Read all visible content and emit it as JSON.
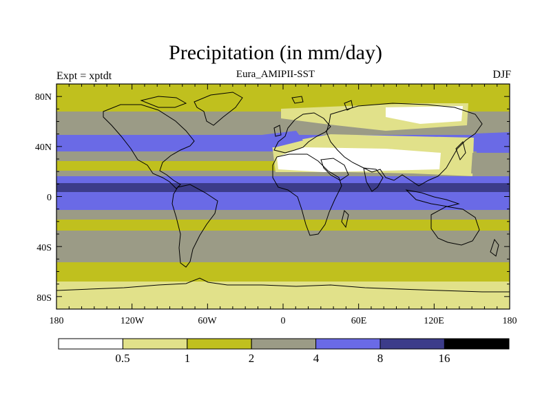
{
  "title": "Precipitation (in mm/day)",
  "left_label": "Expt = xptdt",
  "center_label": "Eura_AMIPII-SST",
  "right_label": "DJF",
  "axes": {
    "x_ticks": [
      "180",
      "120W",
      "60W",
      "0",
      "60E",
      "120E",
      "180"
    ],
    "y_ticks": [
      "80N",
      "40N",
      "0",
      "40S",
      "80S"
    ]
  },
  "colorbar": {
    "colors": [
      "#ffffff",
      "#e1e18a",
      "#c0c01e",
      "#9b9b86",
      "#6a6ae6",
      "#3c3c8a",
      "#000000"
    ],
    "labels": [
      "0.5",
      "1",
      "2",
      "4",
      "8",
      "16"
    ]
  },
  "palette": {
    "white": "#ffffff",
    "light_yellow": "#e1e18a",
    "olive": "#c0c01e",
    "gray": "#9b9b86",
    "blue": "#6a6ae6",
    "dark_blue": "#3c3c8a"
  }
}
